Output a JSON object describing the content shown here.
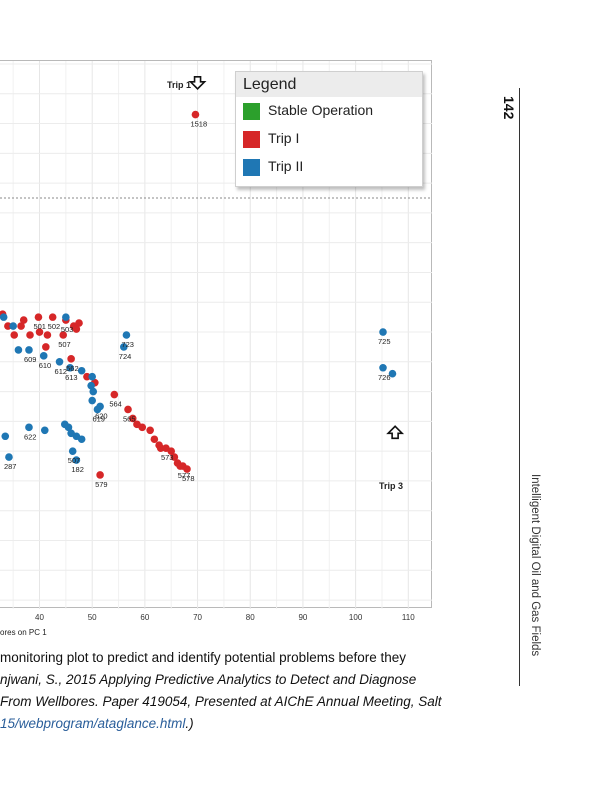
{
  "page": {
    "page_number": "142",
    "running_head": "Intelligent Digital Oil and Gas Fields"
  },
  "caption": {
    "line1": "monitoring plot to predict and identify potential problems before they",
    "line2": "njwani, S., 2015 Applying Predictive Analytics to Detect and Diagnose",
    "line3": "From Wellbores. Paper 419054, Presented at AIChE Annual Meeting, Salt",
    "line4_link": "15/webprogram/ataglance.html",
    "line4_tail": ".)"
  },
  "chart_data": {
    "type": "scatter",
    "xlabel": "ores on PC 1",
    "xticks": [
      40,
      50,
      60,
      70,
      80,
      90,
      100,
      110
    ],
    "xlim": [
      32.5,
      114.5
    ],
    "ylim": [
      -9.3,
      9.1
    ],
    "threshold_y": 4.5,
    "grid": true,
    "legend": {
      "title": "Legend",
      "placement": "top-right",
      "entries": [
        {
          "name": "Stable Operation",
          "color": "#2ca02c"
        },
        {
          "name": "Trip I",
          "color": "#d62728"
        },
        {
          "name": "Trip II",
          "color": "#1f77b4"
        }
      ]
    },
    "annotations": [
      {
        "text": "Trip 1",
        "x": 70,
        "y": 8.3,
        "direction": "down"
      },
      {
        "text": "Trip 3",
        "x": 107.5,
        "y": -3.3,
        "direction": "up"
      }
    ],
    "series": [
      {
        "name": "Trip I",
        "color": "#d62728",
        "points": [
          {
            "x": 69.6,
            "y": 7.3,
            "label": "1518"
          },
          {
            "x": 33.0,
            "y": 0.6,
            "label": ""
          },
          {
            "x": 34.0,
            "y": 0.2,
            "label": ""
          },
          {
            "x": 35.2,
            "y": -0.1,
            "label": ""
          },
          {
            "x": 36.5,
            "y": 0.2,
            "label": ""
          },
          {
            "x": 37.0,
            "y": 0.4,
            "label": ""
          },
          {
            "x": 39.8,
            "y": 0.5,
            "label": "501"
          },
          {
            "x": 42.5,
            "y": 0.5,
            "label": "502"
          },
          {
            "x": 45.0,
            "y": 0.4,
            "label": "503"
          },
          {
            "x": 46.5,
            "y": 0.2,
            "label": ""
          },
          {
            "x": 47.5,
            "y": 0.3,
            "label": ""
          },
          {
            "x": 47.0,
            "y": 0.1,
            "label": ""
          },
          {
            "x": 44.5,
            "y": -0.1,
            "label": "507"
          },
          {
            "x": 41.5,
            "y": -0.1,
            "label": ""
          },
          {
            "x": 40.0,
            "y": 0.0,
            "label": ""
          },
          {
            "x": 38.2,
            "y": -0.1,
            "label": ""
          },
          {
            "x": 41.2,
            "y": -0.5,
            "label": ""
          },
          {
            "x": 46.0,
            "y": -0.9,
            "label": "562"
          },
          {
            "x": 49.0,
            "y": -1.5,
            "label": ""
          },
          {
            "x": 50.5,
            "y": -1.7,
            "label": ""
          },
          {
            "x": 54.2,
            "y": -2.1,
            "label": "564"
          },
          {
            "x": 56.8,
            "y": -2.6,
            "label": "565"
          },
          {
            "x": 57.7,
            "y": -2.9,
            "label": ""
          },
          {
            "x": 58.5,
            "y": -3.1,
            "label": ""
          },
          {
            "x": 59.5,
            "y": -3.2,
            "label": ""
          },
          {
            "x": 61.0,
            "y": -3.3,
            "label": ""
          },
          {
            "x": 61.8,
            "y": -3.6,
            "label": ""
          },
          {
            "x": 62.7,
            "y": -3.8,
            "label": ""
          },
          {
            "x": 63.0,
            "y": -3.9,
            "label": ""
          },
          {
            "x": 64.0,
            "y": -3.9,
            "label": "573"
          },
          {
            "x": 65.0,
            "y": -4.0,
            "label": ""
          },
          {
            "x": 65.6,
            "y": -4.2,
            "label": ""
          },
          {
            "x": 66.2,
            "y": -4.4,
            "label": ""
          },
          {
            "x": 66.7,
            "y": -4.5,
            "label": ""
          },
          {
            "x": 67.2,
            "y": -4.5,
            "label": "577"
          },
          {
            "x": 68.0,
            "y": -4.6,
            "label": "578"
          },
          {
            "x": 51.5,
            "y": -4.8,
            "label": "579"
          }
        ]
      },
      {
        "name": "Trip II",
        "color": "#1f77b4",
        "points": [
          {
            "x": 45.0,
            "y": 0.5,
            "label": ""
          },
          {
            "x": 33.2,
            "y": 0.5,
            "label": ""
          },
          {
            "x": 35.0,
            "y": 0.2,
            "label": ""
          },
          {
            "x": 36.0,
            "y": -0.6,
            "label": ""
          },
          {
            "x": 38.0,
            "y": -0.6,
            "label": "609"
          },
          {
            "x": 40.8,
            "y": -0.8,
            "label": "610"
          },
          {
            "x": 43.8,
            "y": -1.0,
            "label": "612"
          },
          {
            "x": 45.8,
            "y": -1.2,
            "label": "613"
          },
          {
            "x": 48.0,
            "y": -1.3,
            "label": ""
          },
          {
            "x": 50.0,
            "y": -1.5,
            "label": ""
          },
          {
            "x": 49.8,
            "y": -1.8,
            "label": ""
          },
          {
            "x": 50.2,
            "y": -2.0,
            "label": ""
          },
          {
            "x": 50.0,
            "y": -2.3,
            "label": ""
          },
          {
            "x": 51.5,
            "y": -2.5,
            "label": "620"
          },
          {
            "x": 51.0,
            "y": -2.6,
            "label": "619"
          },
          {
            "x": 56.5,
            "y": -0.1,
            "label": "723"
          },
          {
            "x": 56.0,
            "y": -0.5,
            "label": "724"
          },
          {
            "x": 105.2,
            "y": 0.0,
            "label": "725"
          },
          {
            "x": 105.2,
            "y": -1.2,
            "label": "726"
          },
          {
            "x": 107.0,
            "y": -1.4,
            "label": ""
          },
          {
            "x": 38.0,
            "y": -3.2,
            "label": "622"
          },
          {
            "x": 41.0,
            "y": -3.3,
            "label": ""
          },
          {
            "x": 44.8,
            "y": -3.1,
            "label": ""
          },
          {
            "x": 45.5,
            "y": -3.2,
            "label": ""
          },
          {
            "x": 46.0,
            "y": -3.4,
            "label": ""
          },
          {
            "x": 47.0,
            "y": -3.5,
            "label": ""
          },
          {
            "x": 48.0,
            "y": -3.6,
            "label": ""
          },
          {
            "x": 46.3,
            "y": -4.0,
            "label": "507"
          },
          {
            "x": 47.0,
            "y": -4.3,
            "label": "182"
          },
          {
            "x": 33.5,
            "y": -3.5,
            "label": ""
          },
          {
            "x": 34.2,
            "y": -4.2,
            "label": "287"
          }
        ]
      }
    ]
  }
}
